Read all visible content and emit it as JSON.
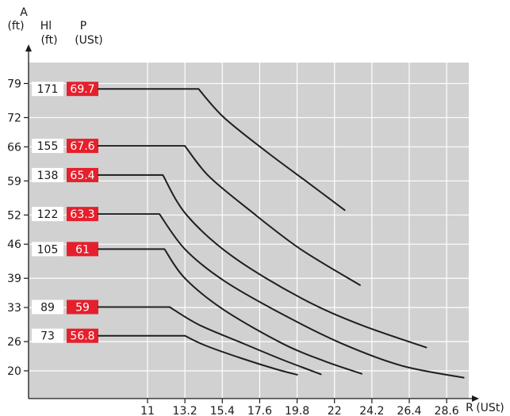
{
  "chart_data": {
    "type": "line",
    "y_axis": {
      "label": "A",
      "unit": "(ft)",
      "ticks": [
        79,
        72,
        66,
        59,
        52,
        46,
        39,
        33,
        26,
        20
      ]
    },
    "x_axis": {
      "label": "R",
      "unit": "(USt)",
      "ticks": [
        11,
        13.2,
        15.4,
        17.6,
        19.8,
        22,
        24.2,
        26.4,
        28.6
      ]
    },
    "column_headers": {
      "hl": {
        "label": "Hl",
        "unit": "(ft)"
      },
      "p": {
        "label": "P",
        "unit": "(USt)"
      }
    },
    "grid": true,
    "series": [
      {
        "hl": "171",
        "p": "69.7",
        "y": 77.9,
        "points": [
          [
            4.0,
            77.9
          ],
          [
            14.0,
            77.9
          ],
          [
            15.5,
            72.0
          ],
          [
            18.0,
            65.0
          ],
          [
            20.5,
            58.5
          ],
          [
            22.6,
            53.0
          ]
        ]
      },
      {
        "hl": "155",
        "p": "67.6",
        "y": 66.2,
        "points": [
          [
            4.0,
            66.2
          ],
          [
            13.2,
            66.2
          ],
          [
            14.6,
            60.0
          ],
          [
            17.0,
            53.0
          ],
          [
            20.0,
            45.0
          ],
          [
            23.5,
            37.6
          ]
        ]
      },
      {
        "hl": "138",
        "p": "65.4",
        "y": 60.2,
        "points": [
          [
            4.0,
            60.2
          ],
          [
            11.9,
            60.2
          ],
          [
            13.3,
            52.0
          ],
          [
            16.0,
            43.5
          ],
          [
            20.0,
            35.0
          ],
          [
            23.5,
            29.5
          ],
          [
            27.4,
            24.8
          ]
        ]
      },
      {
        "hl": "122",
        "p": "63.3",
        "y": 52.2,
        "points": [
          [
            4.0,
            52.2
          ],
          [
            11.7,
            52.2
          ],
          [
            13.2,
            45.0
          ],
          [
            15.5,
            38.5
          ],
          [
            19.0,
            31.5
          ],
          [
            22.5,
            25.5
          ],
          [
            26.0,
            21.0
          ],
          [
            29.6,
            18.6
          ]
        ]
      },
      {
        "hl": "105",
        "p": "61",
        "y": 45.0,
        "points": [
          [
            4.0,
            45.0
          ],
          [
            12.0,
            45.0
          ],
          [
            13.2,
            39.0
          ],
          [
            15.5,
            32.5
          ],
          [
            19.0,
            25.5
          ],
          [
            21.4,
            22.0
          ],
          [
            23.6,
            19.4
          ]
        ]
      },
      {
        "hl": "89",
        "p": "59",
        "y": 33.1,
        "points": [
          [
            4.0,
            33.1
          ],
          [
            12.3,
            33.1
          ],
          [
            14.0,
            29.5
          ],
          [
            16.5,
            25.8
          ],
          [
            19.0,
            22.2
          ],
          [
            21.2,
            19.3
          ]
        ]
      },
      {
        "hl": "73",
        "p": "56.8",
        "y": 27.2,
        "points": [
          [
            4.0,
            27.2
          ],
          [
            13.2,
            27.2
          ],
          [
            14.4,
            25.2
          ],
          [
            16.5,
            22.6
          ],
          [
            18.5,
            20.4
          ],
          [
            19.8,
            19.2
          ]
        ]
      }
    ],
    "colors": {
      "plot_bg": "#d1d1d1",
      "grid": "#ffffff",
      "line": "#1f1f1f",
      "badge_red": "#e5202c",
      "badge_white": "#ffffff"
    }
  }
}
